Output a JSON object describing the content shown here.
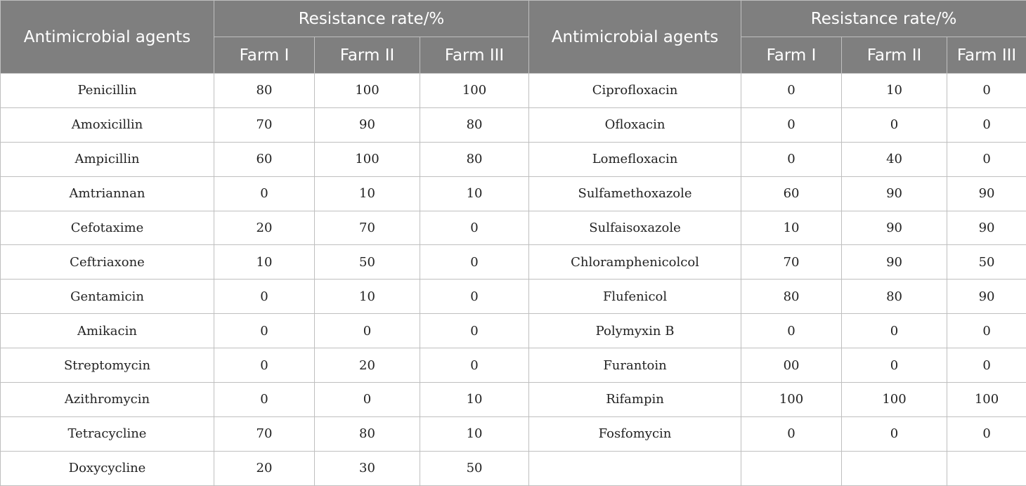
{
  "table": {
    "header": {
      "agents_label_left": "Antimicrobial agents",
      "agents_label_right": "Antimicrobial agents",
      "group_label_left": "Resistance rate/%",
      "group_label_right": "Resistance rate/%",
      "farms_left": [
        "Farm I",
        "Farm II",
        "Farm III"
      ],
      "farms_right": [
        "Farm I",
        "Farm II",
        "Farm III"
      ]
    },
    "rows": [
      {
        "left": {
          "agent": "Penicillin",
          "f1": "80",
          "f2": "100",
          "f3": "100"
        },
        "right": {
          "agent": "Ciprofloxacin",
          "f1": "0",
          "f2": "10",
          "f3": "0"
        }
      },
      {
        "left": {
          "agent": "Amoxicillin",
          "f1": "70",
          "f2": "90",
          "f3": "80"
        },
        "right": {
          "agent": "Ofloxacin",
          "f1": "0",
          "f2": "0",
          "f3": "0"
        }
      },
      {
        "left": {
          "agent": "Ampicillin",
          "f1": "60",
          "f2": "100",
          "f3": "80"
        },
        "right": {
          "agent": "Lomefloxacin",
          "f1": "0",
          "f2": "40",
          "f3": "0"
        }
      },
      {
        "left": {
          "agent": "Amtriannan",
          "f1": "0",
          "f2": "10",
          "f3": "10"
        },
        "right": {
          "agent": "Sulfamethoxazole",
          "f1": "60",
          "f2": "90",
          "f3": "90"
        }
      },
      {
        "left": {
          "agent": "Cefotaxime",
          "f1": "20",
          "f2": "70",
          "f3": "0"
        },
        "right": {
          "agent": "Sulfaisoxazole",
          "f1": "10",
          "f2": "90",
          "f3": "90"
        }
      },
      {
        "left": {
          "agent": "Ceftriaxone",
          "f1": "10",
          "f2": "50",
          "f3": "0"
        },
        "right": {
          "agent": "Chloramphenicolcol",
          "f1": "70",
          "f2": "90",
          "f3": "50"
        }
      },
      {
        "left": {
          "agent": "Gentamicin",
          "f1": "0",
          "f2": "10",
          "f3": "0"
        },
        "right": {
          "agent": "Flufenicol",
          "f1": "80",
          "f2": "80",
          "f3": "90"
        }
      },
      {
        "left": {
          "agent": "Amikacin",
          "f1": "0",
          "f2": "0",
          "f3": "0"
        },
        "right": {
          "agent": "Polymyxin B",
          "f1": "0",
          "f2": "0",
          "f3": "0"
        }
      },
      {
        "left": {
          "agent": "Streptomycin",
          "f1": "0",
          "f2": "20",
          "f3": "0"
        },
        "right": {
          "agent": "Furantoin",
          "f1": "00",
          "f2": "0",
          "f3": "0"
        }
      },
      {
        "left": {
          "agent": "Azithromycin",
          "f1": "0",
          "f2": "0",
          "f3": "10"
        },
        "right": {
          "agent": "Rifampin",
          "f1": "100",
          "f2": "100",
          "f3": "100"
        }
      },
      {
        "left": {
          "agent": "Tetracycline",
          "f1": "70",
          "f2": "80",
          "f3": "10"
        },
        "right": {
          "agent": "Fosfomycin",
          "f1": "0",
          "f2": "0",
          "f3": "0"
        }
      },
      {
        "left": {
          "agent": "Doxycycline",
          "f1": "20",
          "f2": "30",
          "f3": "50"
        },
        "right": {
          "agent": "",
          "f1": "",
          "f2": "",
          "f3": ""
        }
      }
    ]
  }
}
